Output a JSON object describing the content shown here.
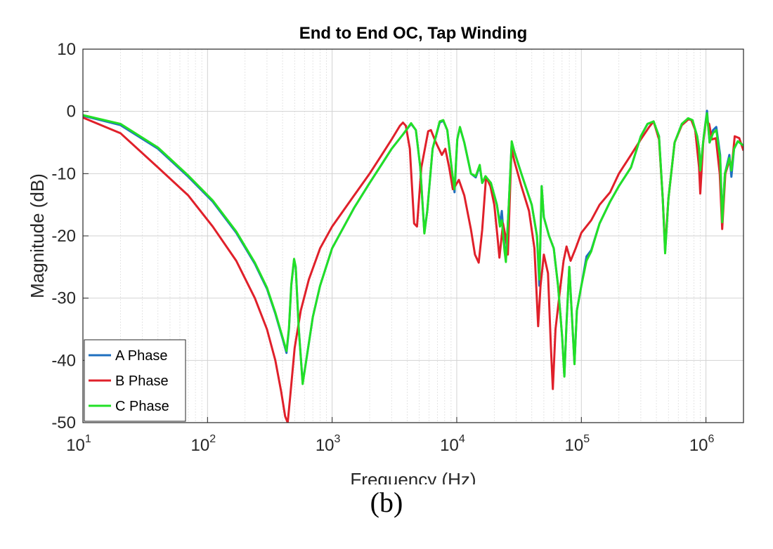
{
  "caption": "(b)",
  "chart_data": {
    "type": "line",
    "title": "End to End OC, Tap Winding",
    "xlabel": "Frequency (Hz)",
    "ylabel": "Magnitude (dB)",
    "xscale": "log",
    "xlim": [
      10,
      2000000
    ],
    "ylim": [
      -50,
      10
    ],
    "xticks": [
      {
        "value": 10,
        "base": "10",
        "exp": "1"
      },
      {
        "value": 100,
        "base": "10",
        "exp": "2"
      },
      {
        "value": 1000,
        "base": "10",
        "exp": "3"
      },
      {
        "value": 10000,
        "base": "10",
        "exp": "4"
      },
      {
        "value": 100000,
        "base": "10",
        "exp": "5"
      },
      {
        "value": 1000000,
        "base": "10",
        "exp": "6"
      }
    ],
    "yticks": [
      10,
      0,
      -10,
      -20,
      -30,
      -40,
      -50
    ],
    "grid": true,
    "legend": "bottom-left",
    "series": [
      {
        "name": "A Phase",
        "color": "#1f6fbf",
        "points": [
          [
            10,
            -0.7
          ],
          [
            20,
            -2.2
          ],
          [
            40,
            -6
          ],
          [
            70,
            -10.5
          ],
          [
            110,
            -14.5
          ],
          [
            170,
            -19.5
          ],
          [
            240,
            -24.5
          ],
          [
            300,
            -28.5
          ],
          [
            350,
            -32.5
          ],
          [
            400,
            -36.5
          ],
          [
            430,
            -38.8
          ],
          [
            450,
            -35
          ],
          [
            470,
            -28
          ],
          [
            495,
            -23.8
          ],
          [
            510,
            -25
          ],
          [
            540,
            -35
          ],
          [
            580,
            -43.6
          ],
          [
            620,
            -40
          ],
          [
            700,
            -33
          ],
          [
            800,
            -28
          ],
          [
            1000,
            -22
          ],
          [
            1500,
            -15.5
          ],
          [
            2000,
            -11.5
          ],
          [
            2500,
            -8.5
          ],
          [
            3000,
            -6
          ],
          [
            3700,
            -3.7
          ],
          [
            4300,
            -2
          ],
          [
            4700,
            -3
          ],
          [
            5100,
            -9
          ],
          [
            5500,
            -19.5
          ],
          [
            5800,
            -16
          ],
          [
            6400,
            -6
          ],
          [
            7300,
            -1.8
          ],
          [
            7800,
            -1.5
          ],
          [
            8400,
            -3
          ],
          [
            9200,
            -10
          ],
          [
            9600,
            -13
          ],
          [
            10100,
            -4.5
          ],
          [
            10600,
            -2.6
          ],
          [
            11500,
            -5
          ],
          [
            13000,
            -10
          ],
          [
            14200,
            -10.6
          ],
          [
            15300,
            -8.8
          ],
          [
            16000,
            -11.5
          ],
          [
            17000,
            -10.6
          ],
          [
            18800,
            -11.5
          ],
          [
            21000,
            -15
          ],
          [
            22200,
            -18
          ],
          [
            23000,
            -16
          ],
          [
            24200,
            -22
          ],
          [
            24800,
            -23.8
          ],
          [
            26000,
            -16
          ],
          [
            27600,
            -5
          ],
          [
            29000,
            -6.5
          ],
          [
            33000,
            -10
          ],
          [
            40000,
            -15
          ],
          [
            44000,
            -20
          ],
          [
            46000,
            -28
          ],
          [
            48000,
            -12
          ],
          [
            50000,
            -17
          ],
          [
            55000,
            -20
          ],
          [
            60000,
            -22
          ],
          [
            65000,
            -28
          ],
          [
            70000,
            -36
          ],
          [
            73000,
            -42.5
          ],
          [
            76000,
            -34
          ],
          [
            80000,
            -25
          ],
          [
            84000,
            -33
          ],
          [
            88000,
            -40.5
          ],
          [
            92000,
            -32
          ],
          [
            100000,
            -28
          ],
          [
            110000,
            -23.3
          ],
          [
            120000,
            -22.3
          ],
          [
            140000,
            -18
          ],
          [
            170000,
            -14.5
          ],
          [
            200000,
            -12
          ],
          [
            250000,
            -9
          ],
          [
            300000,
            -4
          ],
          [
            340000,
            -2
          ],
          [
            380000,
            -1.7
          ],
          [
            420000,
            -4
          ],
          [
            450000,
            -14
          ],
          [
            470000,
            -22.5
          ],
          [
            500000,
            -14
          ],
          [
            560000,
            -5
          ],
          [
            640000,
            -2
          ],
          [
            720000,
            -1.2
          ],
          [
            780000,
            -1.5
          ],
          [
            850000,
            -4
          ],
          [
            880000,
            -6
          ],
          [
            900000,
            -9.5
          ],
          [
            960000,
            -4
          ],
          [
            1020000,
            0.1
          ],
          [
            1070000,
            -5
          ],
          [
            1140000,
            -3
          ],
          [
            1210000,
            -2.5
          ],
          [
            1300000,
            -7
          ],
          [
            1350000,
            -17.5
          ],
          [
            1420000,
            -10
          ],
          [
            1540000,
            -7
          ],
          [
            1600000,
            -10.5
          ],
          [
            1680000,
            -6
          ],
          [
            1800000,
            -4.8
          ],
          [
            2000000,
            -5.5
          ]
        ]
      },
      {
        "name": "B Phase",
        "color": "#e0202a",
        "points": [
          [
            10,
            -1
          ],
          [
            20,
            -3.5
          ],
          [
            40,
            -9
          ],
          [
            70,
            -13.5
          ],
          [
            110,
            -18.5
          ],
          [
            170,
            -24
          ],
          [
            240,
            -30
          ],
          [
            300,
            -35
          ],
          [
            350,
            -40
          ],
          [
            390,
            -45
          ],
          [
            420,
            -49
          ],
          [
            440,
            -50
          ],
          [
            460,
            -46
          ],
          [
            500,
            -38
          ],
          [
            560,
            -32
          ],
          [
            650,
            -27
          ],
          [
            800,
            -22
          ],
          [
            1000,
            -18.5
          ],
          [
            1500,
            -13.5
          ],
          [
            2000,
            -10
          ],
          [
            2500,
            -7
          ],
          [
            3000,
            -4.5
          ],
          [
            3500,
            -2.3
          ],
          [
            3700,
            -1.8
          ],
          [
            3900,
            -2.3
          ],
          [
            4200,
            -6
          ],
          [
            4550,
            -18
          ],
          [
            4800,
            -18.5
          ],
          [
            5200,
            -9
          ],
          [
            5900,
            -3.2
          ],
          [
            6200,
            -3
          ],
          [
            6800,
            -5
          ],
          [
            7600,
            -7
          ],
          [
            8100,
            -6
          ],
          [
            8700,
            -9
          ],
          [
            9300,
            -12.5
          ],
          [
            9700,
            -12
          ],
          [
            10400,
            -11
          ],
          [
            11500,
            -13.5
          ],
          [
            13000,
            -19
          ],
          [
            14000,
            -23
          ],
          [
            15000,
            -24.3
          ],
          [
            16000,
            -19
          ],
          [
            17200,
            -10.5
          ],
          [
            18600,
            -12
          ],
          [
            20000,
            -15
          ],
          [
            21200,
            -20
          ],
          [
            22000,
            -23.5
          ],
          [
            23500,
            -18
          ],
          [
            24600,
            -20
          ],
          [
            25700,
            -23
          ],
          [
            27500,
            -6
          ],
          [
            29000,
            -8
          ],
          [
            33000,
            -12
          ],
          [
            38000,
            -16
          ],
          [
            42000,
            -22
          ],
          [
            45000,
            -34.5
          ],
          [
            47000,
            -28
          ],
          [
            50000,
            -23
          ],
          [
            54000,
            -26
          ],
          [
            57000,
            -38
          ],
          [
            59000,
            -44.6
          ],
          [
            62000,
            -35
          ],
          [
            68000,
            -28
          ],
          [
            72000,
            -24
          ],
          [
            76000,
            -21.7
          ],
          [
            82000,
            -24
          ],
          [
            90000,
            -22
          ],
          [
            100000,
            -19.5
          ],
          [
            120000,
            -17.5
          ],
          [
            140000,
            -15
          ],
          [
            170000,
            -13
          ],
          [
            200000,
            -10
          ],
          [
            250000,
            -7
          ],
          [
            300000,
            -4.5
          ],
          [
            350000,
            -2.5
          ],
          [
            380000,
            -1.6
          ],
          [
            420000,
            -4.5
          ],
          [
            450000,
            -14
          ],
          [
            470000,
            -22
          ],
          [
            500000,
            -14
          ],
          [
            560000,
            -5
          ],
          [
            640000,
            -2.2
          ],
          [
            720000,
            -1.3
          ],
          [
            760000,
            -1.3
          ],
          [
            820000,
            -3
          ],
          [
            880000,
            -9
          ],
          [
            900000,
            -13.2
          ],
          [
            950000,
            -5
          ],
          [
            1000000,
            -1.5
          ],
          [
            1060000,
            -2
          ],
          [
            1120000,
            -4.5
          ],
          [
            1200000,
            -4.3
          ],
          [
            1290000,
            -10
          ],
          [
            1350000,
            -18.9
          ],
          [
            1430000,
            -10
          ],
          [
            1540000,
            -8
          ],
          [
            1610000,
            -9
          ],
          [
            1700000,
            -4
          ],
          [
            1850000,
            -4.3
          ],
          [
            2000000,
            -6.3
          ]
        ]
      },
      {
        "name": "C Phase",
        "color": "#22e026",
        "points": [
          [
            10,
            -0.6
          ],
          [
            20,
            -2
          ],
          [
            40,
            -5.8
          ],
          [
            70,
            -10.3
          ],
          [
            110,
            -14.3
          ],
          [
            170,
            -19.3
          ],
          [
            240,
            -24.3
          ],
          [
            300,
            -28.3
          ],
          [
            350,
            -32.3
          ],
          [
            400,
            -36.3
          ],
          [
            430,
            -38.5
          ],
          [
            450,
            -34.8
          ],
          [
            470,
            -27.8
          ],
          [
            495,
            -23.7
          ],
          [
            510,
            -25
          ],
          [
            540,
            -35
          ],
          [
            580,
            -43.8
          ],
          [
            620,
            -40
          ],
          [
            700,
            -33
          ],
          [
            800,
            -28
          ],
          [
            1000,
            -22
          ],
          [
            1500,
            -15.5
          ],
          [
            2000,
            -11.5
          ],
          [
            2500,
            -8.5
          ],
          [
            3000,
            -6
          ],
          [
            3700,
            -3.7
          ],
          [
            4300,
            -1.9
          ],
          [
            4700,
            -3
          ],
          [
            5100,
            -9
          ],
          [
            5500,
            -19.6
          ],
          [
            5800,
            -16
          ],
          [
            6400,
            -6
          ],
          [
            7300,
            -1.6
          ],
          [
            7800,
            -1.4
          ],
          [
            8400,
            -3
          ],
          [
            9200,
            -10
          ],
          [
            9600,
            -12.5
          ],
          [
            10100,
            -4.5
          ],
          [
            10600,
            -2.5
          ],
          [
            11500,
            -5
          ],
          [
            13000,
            -10
          ],
          [
            14200,
            -10.4
          ],
          [
            15300,
            -8.6
          ],
          [
            16000,
            -11.5
          ],
          [
            17000,
            -10.4
          ],
          [
            18800,
            -11.5
          ],
          [
            21000,
            -15
          ],
          [
            22200,
            -18.5
          ],
          [
            23000,
            -17.5
          ],
          [
            24200,
            -22.5
          ],
          [
            24800,
            -24.2
          ],
          [
            26000,
            -16
          ],
          [
            27600,
            -4.8
          ],
          [
            29000,
            -6.5
          ],
          [
            33000,
            -10
          ],
          [
            40000,
            -15
          ],
          [
            44000,
            -20
          ],
          [
            46000,
            -27
          ],
          [
            48000,
            -12
          ],
          [
            50000,
            -17
          ],
          [
            55000,
            -20
          ],
          [
            60000,
            -22
          ],
          [
            65000,
            -28
          ],
          [
            70000,
            -36
          ],
          [
            73000,
            -42.6
          ],
          [
            76000,
            -34
          ],
          [
            80000,
            -25
          ],
          [
            84000,
            -33
          ],
          [
            88000,
            -40.6
          ],
          [
            92000,
            -32
          ],
          [
            100000,
            -28
          ],
          [
            110000,
            -24
          ],
          [
            120000,
            -22.5
          ],
          [
            140000,
            -18
          ],
          [
            170000,
            -14.5
          ],
          [
            200000,
            -12
          ],
          [
            250000,
            -9
          ],
          [
            300000,
            -4
          ],
          [
            340000,
            -2
          ],
          [
            380000,
            -1.6
          ],
          [
            420000,
            -4
          ],
          [
            450000,
            -14
          ],
          [
            470000,
            -22.8
          ],
          [
            500000,
            -14
          ],
          [
            560000,
            -5
          ],
          [
            640000,
            -2
          ],
          [
            720000,
            -1.1
          ],
          [
            780000,
            -1.4
          ],
          [
            850000,
            -4
          ],
          [
            880000,
            -6
          ],
          [
            900000,
            -9.5
          ],
          [
            960000,
            -4
          ],
          [
            1020000,
            -0.3
          ],
          [
            1070000,
            -5
          ],
          [
            1140000,
            -3.5
          ],
          [
            1210000,
            -3
          ],
          [
            1300000,
            -7.5
          ],
          [
            1350000,
            -17.8
          ],
          [
            1420000,
            -10
          ],
          [
            1540000,
            -7.5
          ],
          [
            1600000,
            -9.5
          ],
          [
            1680000,
            -6
          ],
          [
            1800000,
            -4.8
          ],
          [
            2000000,
            -5.5
          ]
        ]
      }
    ]
  }
}
